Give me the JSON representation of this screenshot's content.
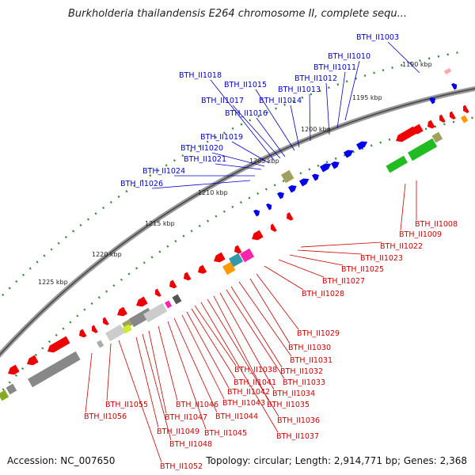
{
  "title": "Burkholderia thailandensis E264 chromosome II, complete sequ...",
  "footer": {
    "accession": "Accession: NC_007650",
    "summary": "Topology: circular; Length: 2,914,771 bp; Genes: 2,368"
  },
  "colors": {
    "upper_label": "#0000cc",
    "lower_label": "#cc0000",
    "forward_gene": "#0000ee",
    "reverse_gene": "#ee0000",
    "cog_green": "#22bb22",
    "cog_gray": "#888888",
    "cog_magenta": "#ff22aa",
    "cog_orange": "#ff9900",
    "cog_olive": "#a0a060",
    "cog_teal": "#3399aa",
    "ring_green": "#3a8a3a"
  },
  "scale_ticks": [
    "1190 kbp",
    "1195 kbp",
    "1200 kbp",
    "1205 kbp",
    "1210 kbp",
    "1215 kbp",
    "1220 kbp",
    "1225 kbp"
  ],
  "upper_genes": [
    "BTH_II1003",
    "BTH_II1010",
    "BTH_II1011",
    "BTH_II1012",
    "BTH_II1013",
    "BTH_II1014",
    "BTH_II1015",
    "BTH_II1016",
    "BTH_II1017",
    "BTH_II1018",
    "BTH_II1019",
    "BTH_II1020",
    "BTH_II1021",
    "BTH_II1024",
    "BTH_II1026"
  ],
  "lower_genes": [
    "BTH_II1008",
    "BTH_II1009",
    "BTH_II1022",
    "BTH_II1023",
    "BTH_II1025",
    "BTH_II1027",
    "BTH_II1028",
    "BTH_II1029",
    "BTH_II1030",
    "BTH_II1031",
    "BTH_II1032",
    "BTH_II1033",
    "BTH_II1034",
    "BTH_II1035",
    "BTH_II1036",
    "BTH_II1037",
    "BTH_II1038",
    "BTH_II1041",
    "BTH_II1042",
    "BTH_II1043",
    "BTH_II1044",
    "BTH_II1045",
    "BTH_II1046",
    "BTH_II1047",
    "BTH_II1048",
    "BTH_II1049",
    "BTH_II1052",
    "BTH_II1055",
    "BTH_II1056"
  ]
}
